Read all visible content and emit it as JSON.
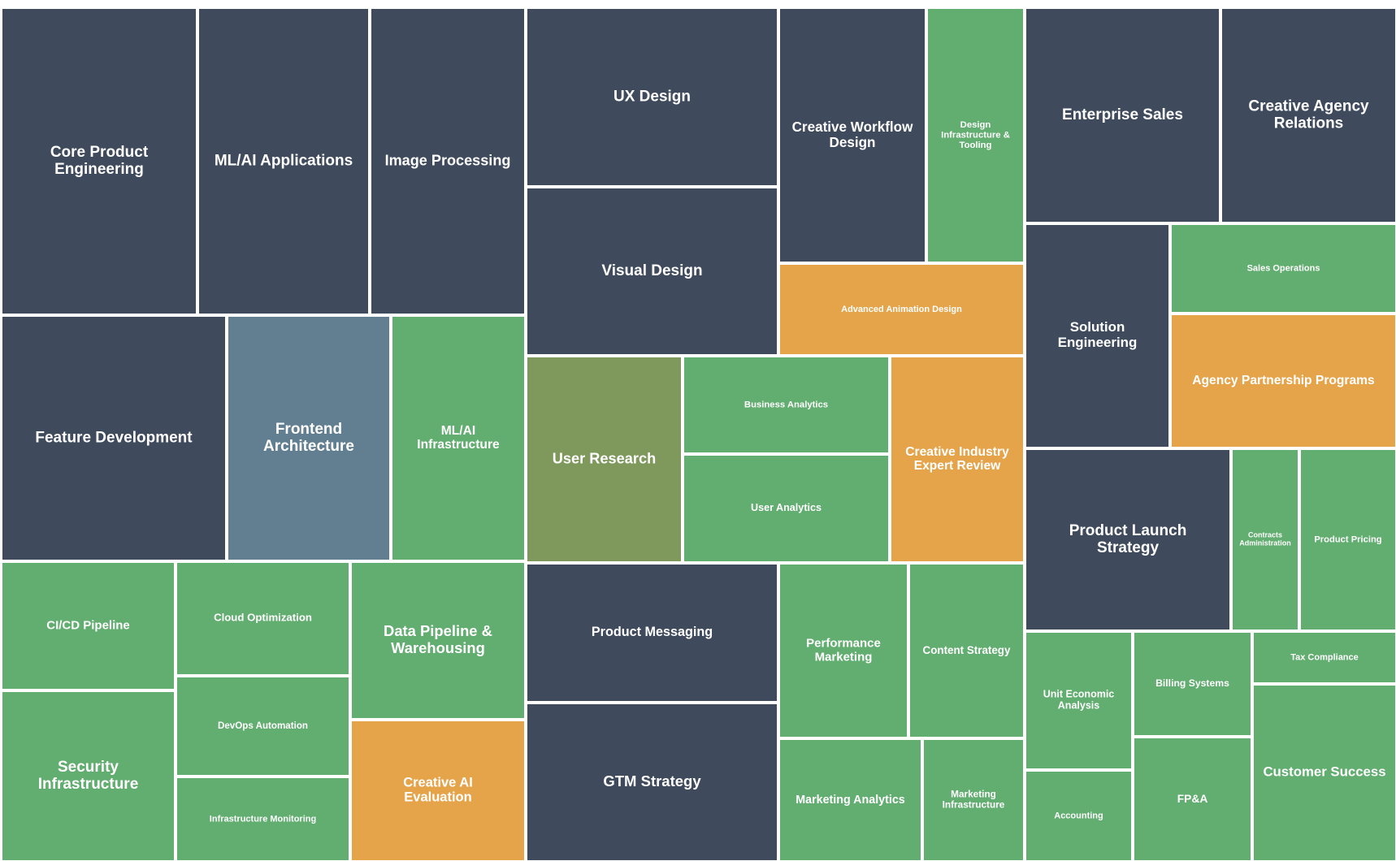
{
  "colors": {
    "slate": "#3f4b5c",
    "green": "#62ad70",
    "orange": "#e5a44a",
    "steel": "#617f91",
    "olive": "#7f995c",
    "border": "#ffffff"
  },
  "chart_data": {
    "type": "treemap",
    "title": "",
    "items": [
      {
        "label": "Core Product Engineering",
        "color": "slate"
      },
      {
        "label": "ML/AI Applications",
        "color": "slate"
      },
      {
        "label": "Image Processing",
        "color": "slate"
      },
      {
        "label": "Feature Development",
        "color": "slate"
      },
      {
        "label": "Frontend Architecture",
        "color": "steel"
      },
      {
        "label": "ML/AI Infrastructure",
        "color": "green"
      },
      {
        "label": "CI/CD Pipeline",
        "color": "green"
      },
      {
        "label": "Cloud Optimization",
        "color": "green"
      },
      {
        "label": "Data Pipeline & Warehousing",
        "color": "green"
      },
      {
        "label": "Security Infrastructure",
        "color": "green"
      },
      {
        "label": "DevOps Automation",
        "color": "green"
      },
      {
        "label": "Infrastructure Monitoring",
        "color": "green"
      },
      {
        "label": "Creative AI Evaluation",
        "color": "orange"
      },
      {
        "label": "UX Design",
        "color": "slate"
      },
      {
        "label": "Visual Design",
        "color": "slate"
      },
      {
        "label": "Creative Workflow Design",
        "color": "slate"
      },
      {
        "label": "Design Infrastructure & Tooling",
        "color": "green"
      },
      {
        "label": "Advanced Animation Design",
        "color": "orange"
      },
      {
        "label": "User Research",
        "color": "olive"
      },
      {
        "label": "Business Analytics",
        "color": "green"
      },
      {
        "label": "User Analytics",
        "color": "green"
      },
      {
        "label": "Creative Industry Expert Review",
        "color": "orange"
      },
      {
        "label": "Product Messaging",
        "color": "slate"
      },
      {
        "label": "GTM Strategy",
        "color": "slate"
      },
      {
        "label": "Performance Marketing",
        "color": "green"
      },
      {
        "label": "Content Strategy",
        "color": "green"
      },
      {
        "label": "Marketing Analytics",
        "color": "green"
      },
      {
        "label": "Marketing Infrastructure",
        "color": "green"
      },
      {
        "label": "Enterprise Sales",
        "color": "slate"
      },
      {
        "label": "Creative Agency Relations",
        "color": "slate"
      },
      {
        "label": "Solution Engineering",
        "color": "slate"
      },
      {
        "label": "Sales Operations",
        "color": "green"
      },
      {
        "label": "Agency Partnership Programs",
        "color": "orange"
      },
      {
        "label": "Product Launch Strategy",
        "color": "slate"
      },
      {
        "label": "Contracts Administration",
        "color": "green"
      },
      {
        "label": "Product Pricing",
        "color": "green"
      },
      {
        "label": "Unit Economic Analysis",
        "color": "green"
      },
      {
        "label": "Billing Systems",
        "color": "green"
      },
      {
        "label": "Tax Compliance",
        "color": "green"
      },
      {
        "label": "Accounting",
        "color": "green"
      },
      {
        "label": "FP&A",
        "color": "green"
      },
      {
        "label": "Customer Success",
        "color": "green"
      }
    ]
  }
}
